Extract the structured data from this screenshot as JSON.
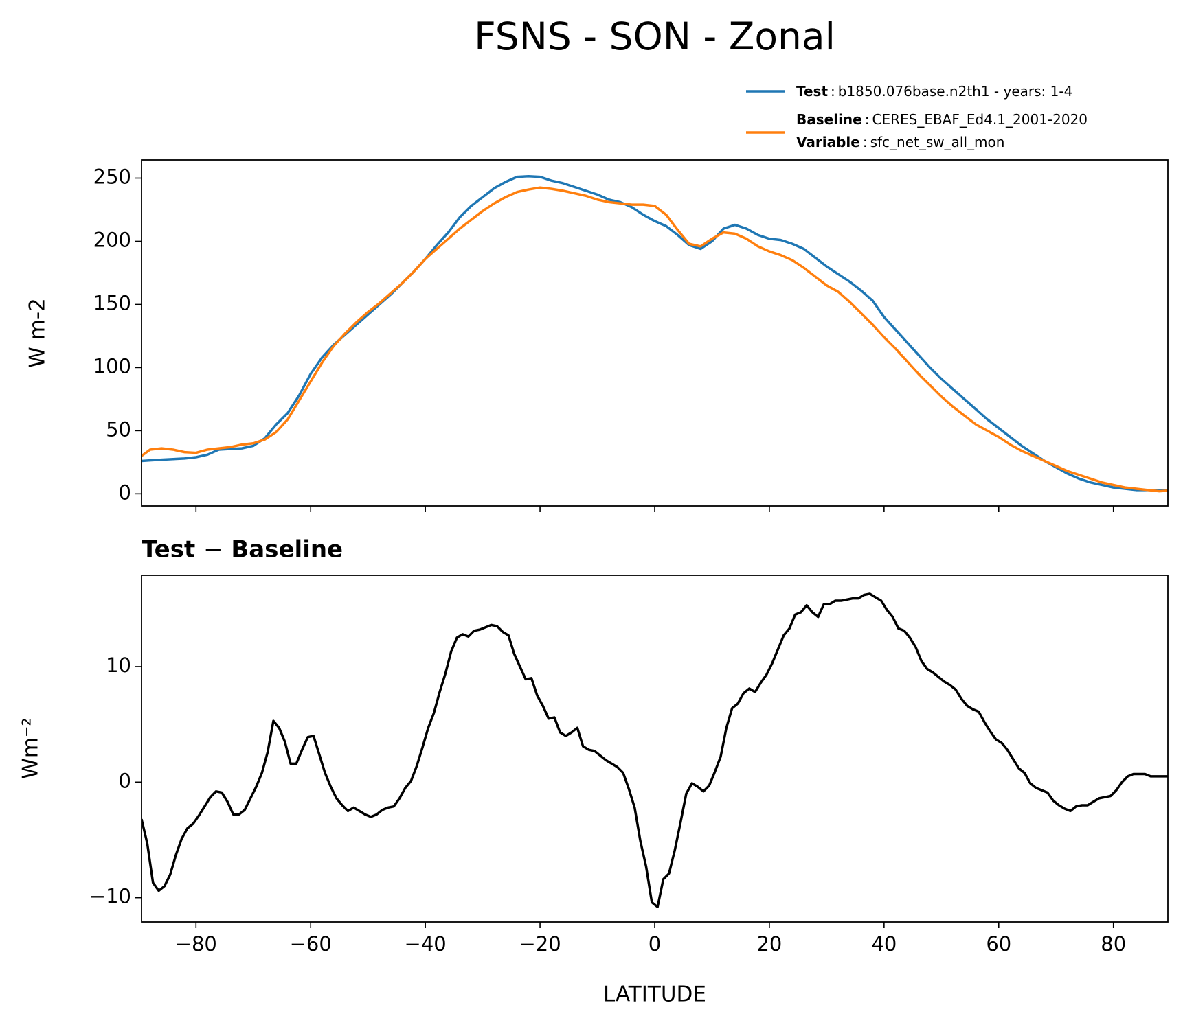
{
  "chart_data": [
    {
      "type": "line",
      "title": "FSNS - SON - Zonal",
      "ylabel": "W m-2",
      "x": [
        -89.5,
        -88,
        -86,
        -84,
        -82,
        -80,
        -78,
        -76,
        -74,
        -72,
        -70,
        -68,
        -66,
        -64,
        -62,
        -60,
        -58,
        -56,
        -54,
        -52,
        -50,
        -48,
        -46,
        -44,
        -42,
        -40,
        -38,
        -36,
        -34,
        -32,
        -30,
        -28,
        -26,
        -24,
        -22,
        -20,
        -18,
        -16,
        -14,
        -12,
        -10,
        -8,
        -6,
        -4,
        -2,
        0,
        2,
        4,
        6,
        8,
        10,
        12,
        14,
        16,
        18,
        20,
        22,
        24,
        26,
        28,
        30,
        32,
        34,
        36,
        38,
        40,
        42,
        44,
        46,
        48,
        50,
        52,
        54,
        56,
        58,
        60,
        62,
        64,
        66,
        68,
        70,
        72,
        74,
        76,
        78,
        80,
        82,
        84,
        86,
        88,
        89.5
      ],
      "series": [
        {
          "name": "Test",
          "description": "b1850.076base.n2th1 - years: 1-4",
          "color": "#1f77b4",
          "values": [
            26,
            26.5,
            27,
            27.5,
            28,
            29,
            31,
            35,
            35.5,
            36,
            38,
            44,
            55,
            64,
            78,
            95,
            108,
            118,
            126,
            134,
            142,
            150,
            158,
            167,
            176,
            186,
            197,
            207,
            219,
            228,
            235,
            242,
            247,
            251,
            251.5,
            251,
            248,
            246,
            243,
            240,
            237,
            233,
            231,
            227,
            221,
            216,
            212,
            205,
            197,
            194,
            200,
            210,
            213,
            210,
            205,
            202,
            201,
            198,
            194,
            187,
            180,
            174,
            168,
            161,
            153,
            140,
            130,
            120,
            110,
            100,
            91,
            83,
            75,
            67,
            59,
            52,
            45,
            38,
            32,
            26,
            21,
            16,
            12,
            9,
            7,
            5,
            4,
            3,
            3,
            3,
            3
          ]
        },
        {
          "name": "Baseline",
          "description": "CERES_EBAF_Ed4.1_2001-2020",
          "color": "#ff7f0e",
          "values": [
            30,
            35,
            36,
            35,
            33,
            32.5,
            35,
            36,
            37,
            39,
            40,
            43,
            49,
            59,
            74,
            89,
            104,
            117,
            127,
            136,
            144,
            151,
            159,
            167,
            176,
            186,
            194,
            202,
            210,
            217,
            224,
            230,
            235,
            239,
            241,
            242.5,
            241.5,
            240,
            238,
            236,
            233,
            231,
            230,
            229,
            229,
            228,
            221,
            209,
            198,
            196,
            202,
            207,
            206,
            202,
            196,
            192,
            189,
            185,
            179,
            172,
            165,
            160,
            152,
            143,
            134,
            124,
            115,
            105,
            95,
            86,
            77,
            69,
            62,
            55,
            50,
            45,
            39,
            34,
            30,
            26,
            22,
            18,
            15,
            12,
            9,
            7,
            5,
            4,
            3,
            2,
            2.5
          ]
        }
      ],
      "legend_extra": {
        "name": "Variable",
        "description": "sfc_net_sw_all_mon"
      },
      "legend_separator": ":",
      "xlim": [
        -89.5,
        89.5
      ],
      "xticks": [
        -80,
        -60,
        -40,
        -20,
        0,
        20,
        40,
        60,
        80
      ],
      "show_xtick_labels": false,
      "ylim": [
        -9.6,
        264.4
      ],
      "yticks": [
        0,
        50,
        100,
        150,
        200,
        250
      ]
    },
    {
      "type": "line",
      "title": "Test − Baseline",
      "xlabel": "LATITUDE",
      "ylabel": "Wm⁻²",
      "x": [
        -89.5,
        -88.5,
        -87.5,
        -86.5,
        -85.5,
        -84.5,
        -83.5,
        -82.5,
        -81.5,
        -80.5,
        -79.5,
        -78.5,
        -77.5,
        -76.5,
        -75.5,
        -74.5,
        -73.5,
        -72.5,
        -71.5,
        -70.5,
        -69.5,
        -68.5,
        -67.5,
        -66.5,
        -65.5,
        -64.5,
        -63.5,
        -62.5,
        -61.5,
        -60.5,
        -59.5,
        -58.5,
        -57.5,
        -56.5,
        -55.5,
        -54.5,
        -53.5,
        -52.5,
        -51.5,
        -50.5,
        -49.5,
        -48.5,
        -47.5,
        -46.5,
        -45.5,
        -44.5,
        -43.5,
        -42.5,
        -41.5,
        -40.5,
        -39.5,
        -38.5,
        -37.5,
        -36.5,
        -35.5,
        -34.5,
        -33.5,
        -32.5,
        -31.5,
        -30.5,
        -29.5,
        -28.5,
        -27.5,
        -26.5,
        -25.5,
        -24.5,
        -23.5,
        -22.5,
        -21.5,
        -20.5,
        -19.5,
        -18.5,
        -17.5,
        -16.5,
        -15.5,
        -14.5,
        -13.5,
        -12.5,
        -11.5,
        -10.5,
        -9.5,
        -8.5,
        -7.5,
        -6.5,
        -5.5,
        -4.5,
        -3.5,
        -2.5,
        -1.5,
        -0.5,
        0.5,
        1.5,
        2.5,
        3.5,
        4.5,
        5.5,
        6.5,
        7.5,
        8.5,
        9.5,
        10.5,
        11.5,
        12.5,
        13.5,
        14.5,
        15.5,
        16.5,
        17.5,
        18.5,
        19.5,
        20.5,
        21.5,
        22.5,
        23.5,
        24.5,
        25.5,
        26.5,
        27.5,
        28.5,
        29.5,
        30.5,
        31.5,
        32.5,
        33.5,
        34.5,
        35.5,
        36.5,
        37.5,
        38.5,
        39.5,
        40.5,
        41.5,
        42.5,
        43.5,
        44.5,
        45.5,
        46.5,
        47.5,
        48.5,
        49.5,
        50.5,
        51.5,
        52.5,
        53.5,
        54.5,
        55.5,
        56.5,
        57.5,
        58.5,
        59.5,
        60.5,
        61.5,
        62.5,
        63.5,
        64.5,
        65.5,
        66.5,
        67.5,
        68.5,
        69.5,
        70.5,
        71.5,
        72.5,
        73.5,
        74.5,
        75.5,
        76.5,
        77.5,
        78.5,
        79.5,
        80.5,
        81.5,
        82.5,
        83.5,
        84.5,
        85.5,
        86.5,
        87.5,
        88.5,
        89.5
      ],
      "series": [
        {
          "color": "#000000",
          "values": [
            -3.2,
            -5.3,
            -8.7,
            -9.4,
            -9.0,
            -8.0,
            -6.3,
            -4.9,
            -4.0,
            -3.6,
            -2.9,
            -2.1,
            -1.3,
            -0.8,
            -0.9,
            -1.7,
            -2.8,
            -2.8,
            -2.4,
            -1.4,
            -0.4,
            0.8,
            2.6,
            5.3,
            4.7,
            3.5,
            1.6,
            1.6,
            2.8,
            3.9,
            4.0,
            2.4,
            0.8,
            -0.4,
            -1.4,
            -2.0,
            -2.5,
            -2.2,
            -2.5,
            -2.8,
            -3.0,
            -2.8,
            -2.4,
            -2.2,
            -2.1,
            -1.4,
            -0.5,
            0.1,
            1.4,
            3.0,
            4.7,
            6.0,
            7.8,
            9.4,
            11.3,
            12.5,
            12.8,
            12.6,
            13.1,
            13.2,
            13.4,
            13.6,
            13.5,
            13.0,
            12.7,
            11.1,
            10.0,
            8.9,
            9.0,
            7.5,
            6.6,
            5.5,
            5.6,
            4.3,
            4.0,
            4.3,
            4.7,
            3.1,
            2.8,
            2.7,
            2.3,
            1.9,
            1.6,
            1.3,
            0.8,
            -0.6,
            -2.2,
            -5.1,
            -7.3,
            -10.4,
            -10.8,
            -8.4,
            -7.9,
            -5.9,
            -3.5,
            -1.0,
            -0.1,
            -0.4,
            -0.8,
            -0.3,
            0.9,
            2.2,
            4.7,
            6.4,
            6.8,
            7.7,
            8.1,
            7.8,
            8.6,
            9.3,
            10.3,
            11.5,
            12.7,
            13.3,
            14.5,
            14.7,
            15.3,
            14.7,
            14.3,
            15.4,
            15.4,
            15.7,
            15.7,
            15.8,
            15.9,
            15.9,
            16.2,
            16.3,
            16.0,
            15.7,
            14.9,
            14.3,
            13.3,
            13.1,
            12.5,
            11.7,
            10.5,
            9.8,
            9.5,
            9.1,
            8.7,
            8.4,
            8.0,
            7.2,
            6.6,
            6.3,
            6.1,
            5.2,
            4.4,
            3.7,
            3.4,
            2.8,
            2.0,
            1.2,
            0.8,
            -0.1,
            -0.5,
            -0.7,
            -0.9,
            -1.6,
            -2.0,
            -2.3,
            -2.5,
            -2.1,
            -2.0,
            -2.0,
            -1.7,
            -1.4,
            -1.3,
            -1.2,
            -0.7,
            0.0,
            0.5,
            0.7,
            0.7,
            0.7,
            0.5,
            0.5,
            0.5,
            0.5
          ]
        }
      ],
      "xlim": [
        -89.5,
        89.5
      ],
      "xticks": [
        {
          "value": -80,
          "label": "−80"
        },
        {
          "value": -60,
          "label": "−60"
        },
        {
          "value": -40,
          "label": "−40"
        },
        {
          "value": -20,
          "label": "−20"
        },
        0,
        20,
        40,
        60,
        80
      ],
      "show_xtick_labels": true,
      "ylim": [
        -12.1,
        17.9
      ],
      "yticks": [
        {
          "value": -10,
          "label": "−10"
        },
        0,
        10
      ]
    }
  ]
}
